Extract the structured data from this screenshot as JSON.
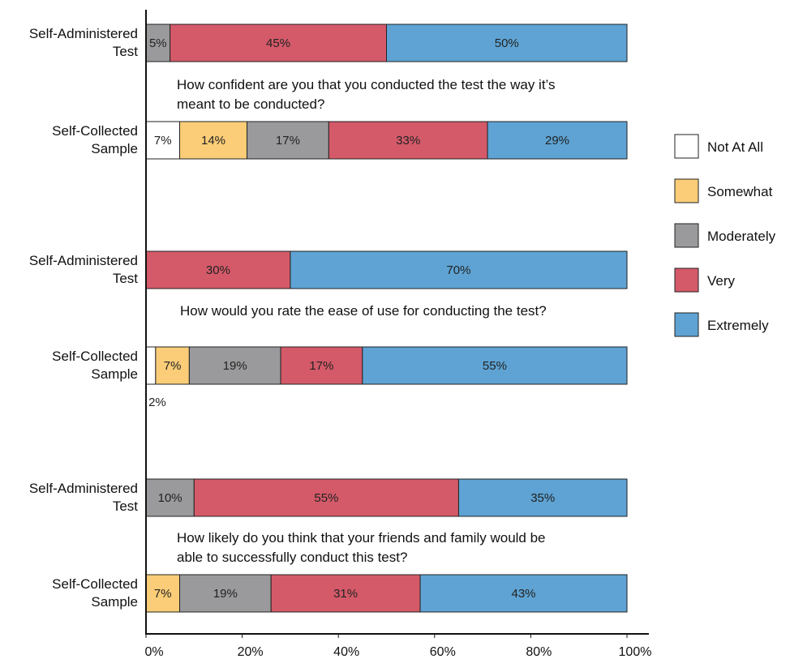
{
  "colors": {
    "Not At All": "#ffffff",
    "Somewhat": "#fbcd78",
    "Moderately": "#9a9a9c",
    "Very": "#d45a69",
    "Extremely": "#5ea3d3"
  },
  "chart_data": {
    "type": "bar",
    "orientation": "horizontal",
    "stacked": true,
    "xlim": [
      0,
      100
    ],
    "xticks": [
      "0%",
      "20%",
      "40%",
      "60%",
      "80%",
      "100%"
    ],
    "legend_position": "right",
    "legend": [
      "Not At All",
      "Somewhat",
      "Moderately",
      "Very",
      "Extremely"
    ],
    "groups": [
      {
        "question": [
          "How confident are you that you conducted the test the way it’s",
          "meant to be conducted?"
        ],
        "bars": [
          {
            "label": [
              "Self-Administered",
              "Test"
            ],
            "segments": [
              {
                "series": "Moderately",
                "value": 5,
                "label": "5%"
              },
              {
                "series": "Very",
                "value": 45,
                "label": "45%"
              },
              {
                "series": "Extremely",
                "value": 50,
                "label": "50%"
              }
            ]
          },
          {
            "label": [
              "Self-Collected",
              "Sample"
            ],
            "segments": [
              {
                "series": "Not At All",
                "value": 7,
                "label": "7%"
              },
              {
                "series": "Somewhat",
                "value": 14,
                "label": "14%"
              },
              {
                "series": "Moderately",
                "value": 17,
                "label": "17%"
              },
              {
                "series": "Very",
                "value": 33,
                "label": "33%"
              },
              {
                "series": "Extremely",
                "value": 29,
                "label": "29%"
              }
            ]
          }
        ]
      },
      {
        "question": [
          "How would you rate the ease of use for conducting the test?"
        ],
        "bars": [
          {
            "label": [
              "Self-Administered",
              "Test"
            ],
            "segments": [
              {
                "series": "Very",
                "value": 30,
                "label": "30%"
              },
              {
                "series": "Extremely",
                "value": 70,
                "label": "70%"
              }
            ]
          },
          {
            "label": [
              "Self-Collected",
              "Sample"
            ],
            "segments": [
              {
                "series": "Not At All",
                "value": 2,
                "label": "2%",
                "label_below": true
              },
              {
                "series": "Somewhat",
                "value": 7,
                "label": "7%"
              },
              {
                "series": "Moderately",
                "value": 19,
                "label": "19%"
              },
              {
                "series": "Very",
                "value": 17,
                "label": "17%"
              },
              {
                "series": "Extremely",
                "value": 55,
                "label": "55%"
              }
            ]
          }
        ]
      },
      {
        "question": [
          "How likely do you think that your friends and family would be",
          "able to successfully conduct this test?"
        ],
        "bars": [
          {
            "label": [
              "Self-Administered",
              "Test"
            ],
            "segments": [
              {
                "series": "Moderately",
                "value": 10,
                "label": "10%"
              },
              {
                "series": "Very",
                "value": 55,
                "label": "55%"
              },
              {
                "series": "Extremely",
                "value": 35,
                "label": "35%"
              }
            ]
          },
          {
            "label": [
              "Self-Collected",
              "Sample"
            ],
            "segments": [
              {
                "series": "Somewhat",
                "value": 7,
                "label": "7%"
              },
              {
                "series": "Moderately",
                "value": 19,
                "label": "19%"
              },
              {
                "series": "Very",
                "value": 31,
                "label": "31%"
              },
              {
                "series": "Extremely",
                "value": 43,
                "label": "43%"
              }
            ]
          }
        ]
      }
    ]
  }
}
